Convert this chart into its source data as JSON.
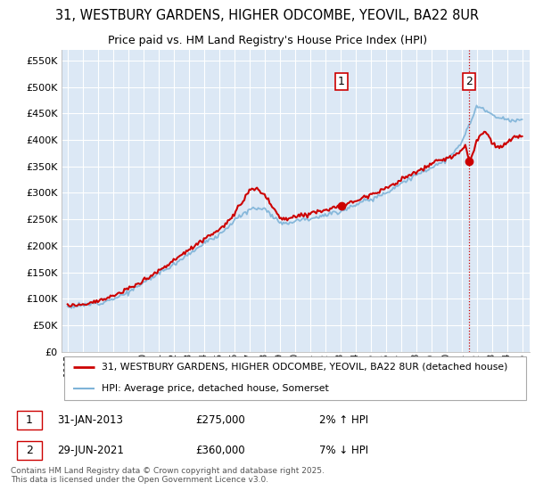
{
  "title_line1": "31, WESTBURY GARDENS, HIGHER ODCOMBE, YEOVIL, BA22 8UR",
  "title_line2": "Price paid vs. HM Land Registry's House Price Index (HPI)",
  "background_color": "#ffffff",
  "plot_bg_color": "#dce8f5",
  "grid_color": "#ffffff",
  "sale1_date": "31-JAN-2013",
  "sale1_price": 275000,
  "sale1_hpi_pct": "2% ↑ HPI",
  "sale1_year": 2013.08,
  "sale2_date": "29-JUN-2021",
  "sale2_price": 360000,
  "sale2_hpi_pct": "7% ↓ HPI",
  "sale2_year": 2021.5,
  "legend_line1": "31, WESTBURY GARDENS, HIGHER ODCOMBE, YEOVIL, BA22 8UR (detached house)",
  "legend_line2": "HPI: Average price, detached house, Somerset",
  "footer": "Contains HM Land Registry data © Crown copyright and database right 2025.\nThis data is licensed under the Open Government Licence v3.0.",
  "hpi_color": "#7eb3d8",
  "price_color": "#cc0000",
  "vline_color": "#cc0000",
  "ylim_max": 570000,
  "ylim_min": 0,
  "xlim_min": 1994.6,
  "xlim_max": 2025.5
}
